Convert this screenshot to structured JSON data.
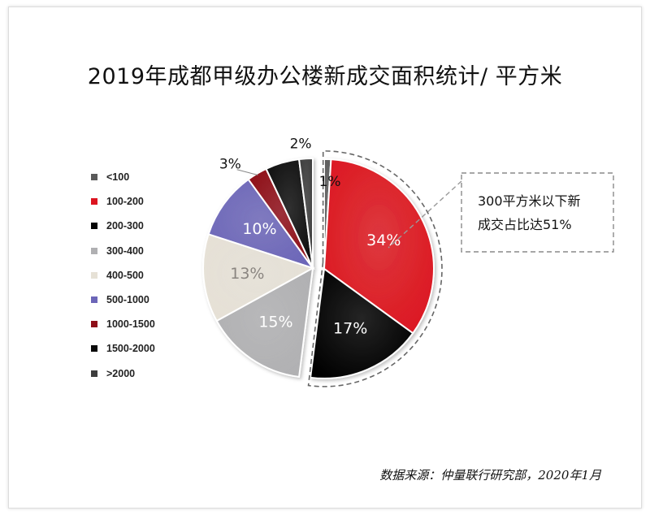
{
  "title": "2019年成都甲级办公楼新成交面积统计/ 平方米",
  "source": "数据来源：仲量联行研究部，2020年1月",
  "callout": {
    "line1": "300平方米以下新",
    "line2": "成交占比达51%"
  },
  "colors": {
    "<100": "#5a5a5a",
    "100-200": "#dc1420",
    "200-300": "#050505",
    "300-400": "#b0b0b2",
    "400-500": "#e6e1d6",
    "500-1000": "#6c66b8",
    "1000-1500": "#8e0f18",
    "1500-2000": "#0a0a0a",
    ">2000": "#3d3d3d"
  },
  "chart_data": {
    "type": "pie",
    "categories": [
      "<100",
      "100-200",
      "200-300",
      "300-400",
      "400-500",
      "500-1000",
      "1000-1500",
      "1500-2000",
      ">2000"
    ],
    "values": [
      1,
      34,
      17,
      15,
      13,
      10,
      3,
      5,
      2
    ],
    "data_labels": [
      "1%",
      "34%",
      "17%",
      "15%",
      "13%",
      "10%",
      "3%",
      "",
      "2%"
    ],
    "exploded": [
      "<100",
      "100-200",
      "200-300"
    ],
    "legend_position": "left"
  }
}
